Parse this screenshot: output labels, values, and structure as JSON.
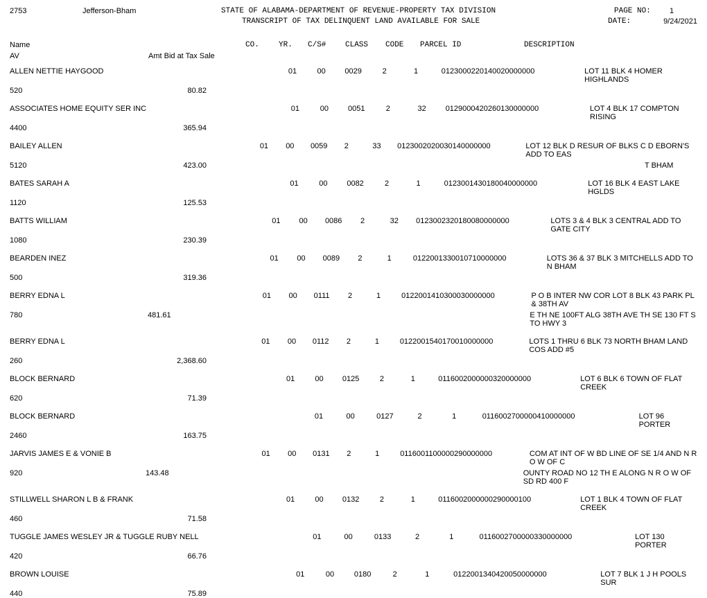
{
  "header": {
    "county_code": "2753",
    "county_name": "Jefferson-Bham",
    "title1": "STATE OF ALABAMA-DEPARTMENT OF REVENUE-PROPERTY TAX DIVISION",
    "title2": "TRANSCRIPT OF TAX DELINQUENT LAND AVAILABLE FOR SALE",
    "page_label": "PAGE NO:",
    "page_no": "1",
    "date_label": "DATE:",
    "date": "9/24/2021"
  },
  "columns": {
    "name": "Name",
    "co": "CO.",
    "yr": "YR.",
    "cs": "C/S#",
    "class": "CLASS",
    "code": "CODE",
    "parcel": "PARCEL ID",
    "desc": "DESCRIPTION",
    "av": "AV",
    "bid": "Amt Bid at Tax Sale"
  },
  "records": [
    {
      "name": "ALLEN NETTIE HAYGOOD",
      "co": "01",
      "yr": "00",
      "cs": "0029",
      "class": "2",
      "code": "1",
      "parcel": "0123000220140020000000",
      "desc": "LOT 11 BLK 4 HOMER HIGHLANDS",
      "desc2": "",
      "av": "520",
      "bid": "80.82"
    },
    {
      "name": "ASSOCIATES HOME EQUITY SER INC",
      "co": "01",
      "yr": "00",
      "cs": "0051",
      "class": "2",
      "code": "32",
      "parcel": "0129000420260130000000",
      "desc": "LOT 4 BLK 17 COMPTON RISING",
      "desc2": "",
      "av": "4400",
      "bid": "365.94"
    },
    {
      "name": "BAILEY ALLEN",
      "co": "01",
      "yr": "00",
      "cs": "0059",
      "class": "2",
      "code": "33",
      "parcel": "0123002020030140000000",
      "desc": "LOT 12 BLK D RESUR OF BLKS C D EBORN'S ADD TO EAS",
      "desc2": "T BHAM",
      "av": "5120",
      "bid": "423.00"
    },
    {
      "name": "BATES SARAH A",
      "co": "01",
      "yr": "00",
      "cs": "0082",
      "class": "2",
      "code": "1",
      "parcel": "0123001430180040000000",
      "desc": "LOT 16 BLK 4 EAST LAKE HGLDS",
      "desc2": "",
      "av": "1120",
      "bid": "125.53"
    },
    {
      "name": "BATTS WILLIAM",
      "co": "01",
      "yr": "00",
      "cs": "0086",
      "class": "2",
      "code": "32",
      "parcel": "0123002320180080000000",
      "desc": "LOTS 3 & 4 BLK 3 CENTRAL ADD TO GATE CITY",
      "desc2": "",
      "av": "1080",
      "bid": "230.39"
    },
    {
      "name": "BEARDEN INEZ",
      "co": "01",
      "yr": "00",
      "cs": "0089",
      "class": "2",
      "code": "1",
      "parcel": "0122001330010710000000",
      "desc": "LOTS 36 & 37 BLK 3 MITCHELLS ADD TO N BHAM",
      "desc2": "",
      "av": "500",
      "bid": "319.36"
    },
    {
      "name": "BERRY EDNA L",
      "co": "01",
      "yr": "00",
      "cs": "0111",
      "class": "2",
      "code": "1",
      "parcel": "0122001410300030000000",
      "desc": "P O B INTER NW COR LOT 8 BLK 43 PARK PL & 38TH AV",
      "desc2": "E TH NE 100FT ALG 38TH AVE TH SE 130 FT S TO HWY 3",
      "av": "780",
      "bid": "481.61"
    },
    {
      "name": "BERRY EDNA L",
      "co": "01",
      "yr": "00",
      "cs": "0112",
      "class": "2",
      "code": "1",
      "parcel": "0122001540170010000000",
      "desc": "LOTS 1 THRU 6 BLK 73 NORTH BHAM LAND COS ADD #5",
      "desc2": "",
      "av": "260",
      "bid": "2,368.60"
    },
    {
      "name": "BLOCK BERNARD",
      "co": "01",
      "yr": "00",
      "cs": "0125",
      "class": "2",
      "code": "1",
      "parcel": "0116002000000320000000",
      "desc": "LOT 6 BLK 6 TOWN OF FLAT CREEK",
      "desc2": "",
      "av": "620",
      "bid": "71.39"
    },
    {
      "name": "BLOCK BERNARD",
      "co": "01",
      "yr": "00",
      "cs": "0127",
      "class": "2",
      "code": "1",
      "parcel": "0116002700000410000000",
      "desc": "LOT 96 PORTER",
      "desc2": "",
      "av": "2460",
      "bid": "163.75"
    },
    {
      "name": "JARVIS JAMES E & VONIE B",
      "co": "01",
      "yr": "00",
      "cs": "0131",
      "class": "2",
      "code": "1",
      "parcel": "0116001100000290000000",
      "desc": "COM AT INT OF W BD LINE OF SE 1/4 AND N R O W OF C",
      "desc2": "OUNTY ROAD NO 12 TH E ALONG N R O W OF SD RD 400 F",
      "av": "920",
      "bid": "143.48"
    },
    {
      "name": "STILLWELL SHARON L B & FRANK",
      "co": "01",
      "yr": "00",
      "cs": "0132",
      "class": "2",
      "code": "1",
      "parcel": "0116002000000290000100",
      "desc": "LOT 1 BLK 4 TOWN OF FLAT CREEK",
      "desc2": "",
      "av": "460",
      "bid": "71.58"
    },
    {
      "name": "TUGGLE JAMES WESLEY JR & TUGGLE RUBY NELL",
      "co": "01",
      "yr": "00",
      "cs": "0133",
      "class": "2",
      "code": "1",
      "parcel": "0116002700000330000000",
      "desc": "LOT 130 PORTER",
      "desc2": "",
      "av": "420",
      "bid": "66.76"
    },
    {
      "name": "BROWN LOUISE",
      "co": "01",
      "yr": "00",
      "cs": "0180",
      "class": "2",
      "code": "1",
      "parcel": "0122001340420050000000",
      "desc": "LOT 7 BLK 1 J H POOLS SUR",
      "desc2": "",
      "av": "440",
      "bid": "75.89"
    }
  ]
}
